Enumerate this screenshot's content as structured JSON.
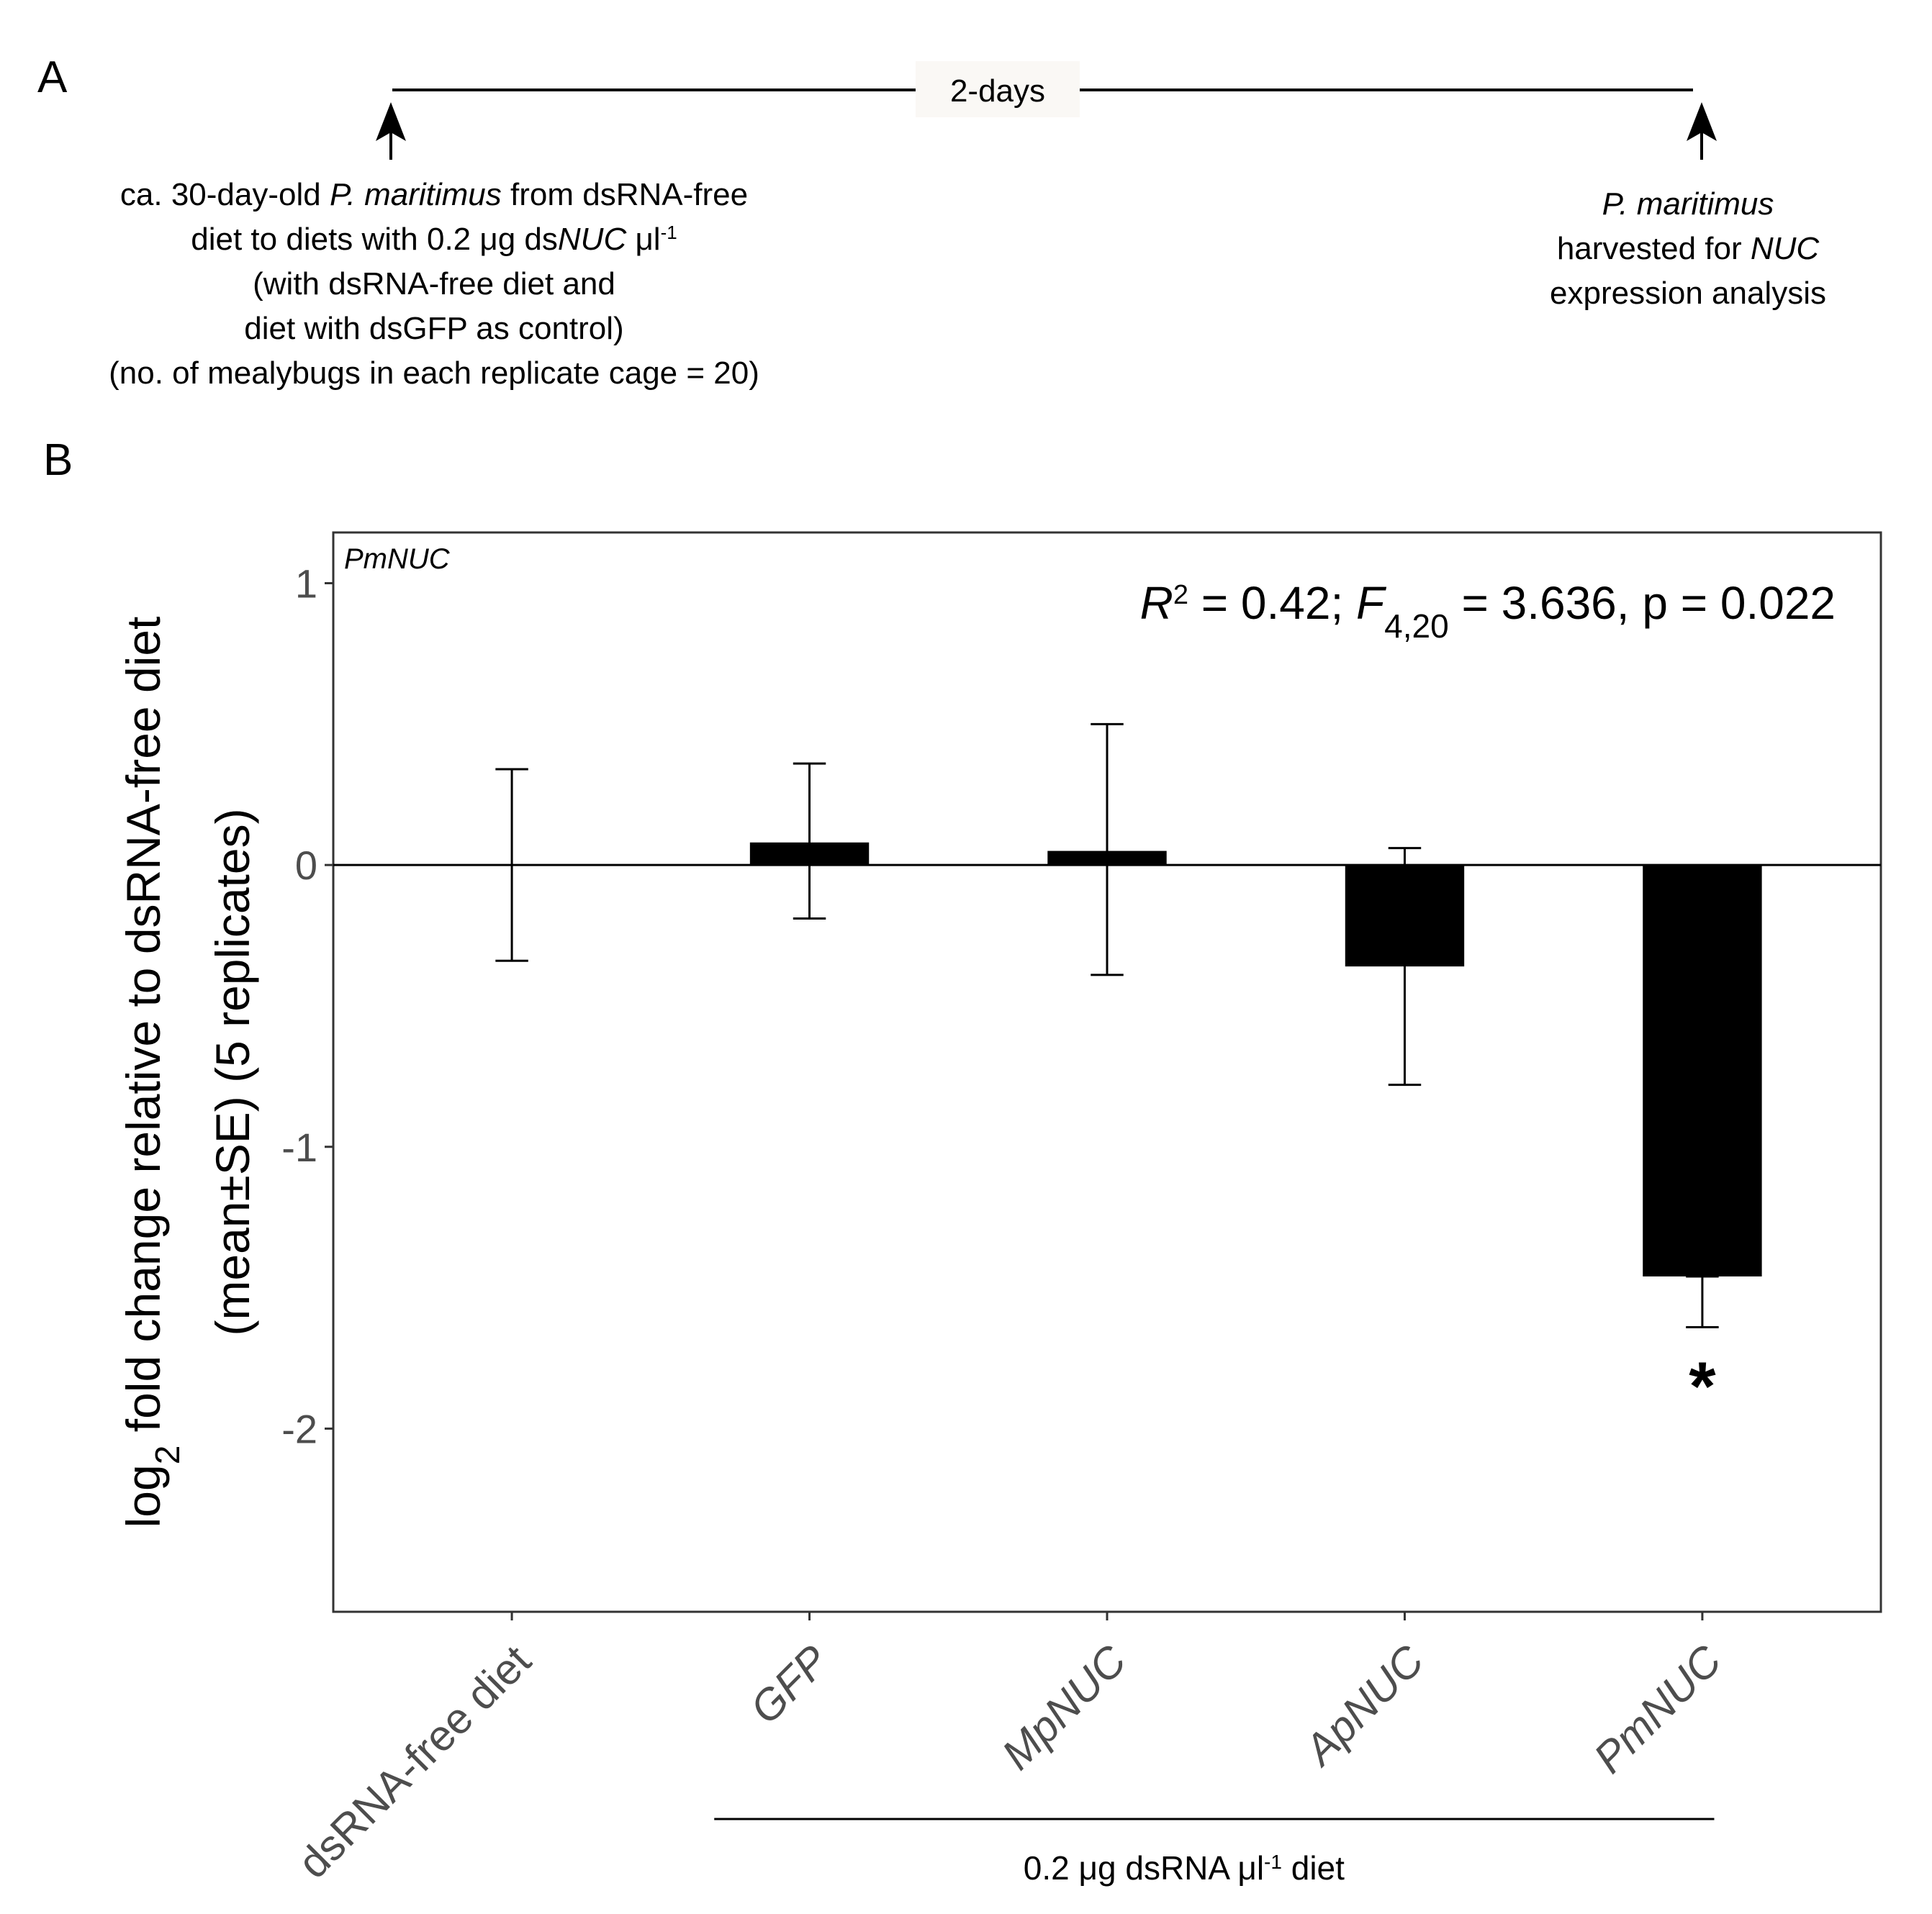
{
  "panel_a": {
    "label": "A",
    "duration_label": "2-days",
    "start_lines": [
      [
        {
          "t": "ca. 30-day-old "
        },
        {
          "t": "P. maritimus",
          "i": true
        },
        {
          "t": " from dsRNA-free"
        }
      ],
      [
        {
          "t": "diet  to diets with 0.2 μg ds"
        },
        {
          "t": "NUC",
          "i": true
        },
        {
          "t": " μl"
        },
        {
          "t": "-1",
          "sup": true
        }
      ],
      [
        {
          "t": "(with dsRNA-free diet and"
        }
      ],
      [
        {
          "t": "diet with dsGFP as control)"
        }
      ],
      [
        {
          "t": "(no. of mealybugs in each replicate cage = 20)"
        }
      ]
    ],
    "end_lines": [
      [
        {
          "t": "P. maritimus",
          "i": true
        }
      ],
      [
        {
          "t": "harvested for "
        },
        {
          "t": "NUC",
          "i": true
        }
      ],
      [
        {
          "t": "expression analysis"
        }
      ]
    ]
  },
  "panel_b": {
    "label": "B"
  },
  "chart_data": {
    "type": "bar",
    "panel_tag": "PmNUC",
    "stats": [
      {
        "t": "R",
        "i": true
      },
      {
        "t": "2",
        "sup": true
      },
      {
        "t": " = 0.42; "
      },
      {
        "t": "F",
        "i": true
      },
      {
        "t": "4,20",
        "sub": true
      },
      {
        "t": " = 3.636, p = 0.022"
      }
    ],
    "ylabel_line1": [
      {
        "t": "log"
      },
      {
        "t": "2",
        "sub": true
      },
      {
        "t": " fold change relative to dsRNA-free diet"
      }
    ],
    "ylabel_line2": "(mean±SE) (5 replicates)",
    "ylim": [
      -2.65,
      1.18
    ],
    "yticks": [
      1,
      0,
      -1,
      -2
    ],
    "ytick_labels": [
      "1",
      "0",
      "-1",
      "-2"
    ],
    "categories": [
      "dsRNA-free diet",
      "GFP",
      "MpNUC",
      "ApNUC",
      "PmNUC"
    ],
    "category_italic": [
      false,
      true,
      true,
      true,
      true
    ],
    "values": [
      0.0,
      0.08,
      0.05,
      -0.36,
      -1.46
    ],
    "error_upper": [
      0.34,
      0.36,
      0.5,
      0.06,
      -1.46
    ],
    "error_lower": [
      -0.34,
      -0.19,
      -0.39,
      -0.78,
      -1.64
    ],
    "significance": [
      "",
      "",
      "",
      "",
      "*"
    ],
    "bar_color": "#000000",
    "grid": false,
    "group_bracket": {
      "from_category": 1,
      "to_category": 4,
      "label": [
        {
          "t": "0.2 μg dsRNA μl"
        },
        {
          "t": "-1",
          "sup": true
        },
        {
          "t": " diet"
        }
      ]
    }
  }
}
